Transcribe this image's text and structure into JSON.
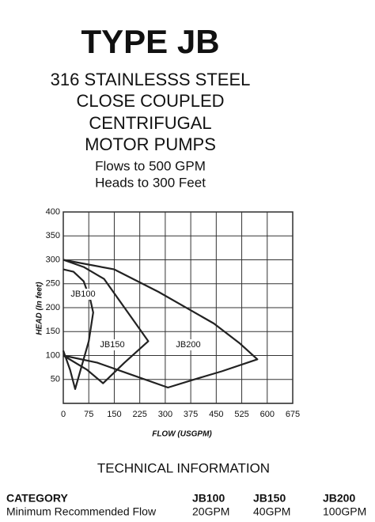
{
  "header": {
    "title": "TYPE JB",
    "lines": [
      "316 STAINLESSS STEEL",
      "CLOSE COUPLED",
      "CENTRIFUGAL",
      "MOTOR PUMPS"
    ],
    "sublines": [
      "Flows to 500 GPM",
      "Heads to 300 Feet"
    ]
  },
  "chart_data": {
    "type": "line",
    "x_label": "FLOW (USGPM)",
    "y_label": "HEAD (In feet)",
    "xlim": [
      0,
      675
    ],
    "ylim": [
      0,
      400
    ],
    "xticks": [
      0,
      75,
      150,
      225,
      300,
      375,
      450,
      525,
      600,
      675
    ],
    "yticks": [
      50,
      100,
      150,
      200,
      250,
      300,
      350,
      400
    ],
    "grid": true,
    "series": [
      {
        "name": "JB100",
        "color": "#222222",
        "x": [
          0,
          30,
          60,
          80,
          88,
          75,
          55,
          35,
          20,
          0
        ],
        "values": [
          280,
          275,
          255,
          215,
          190,
          130,
          80,
          30,
          70,
          110
        ]
      },
      {
        "name": "JB150",
        "color": "#222222",
        "x": [
          0,
          60,
          120,
          175,
          210,
          250,
          180,
          117,
          70,
          0
        ],
        "values": [
          300,
          285,
          260,
          205,
          170,
          130,
          85,
          42,
          70,
          100
        ]
      },
      {
        "name": "JB200",
        "color": "#222222",
        "x": [
          0,
          150,
          280,
          443,
          520,
          571,
          466,
          385,
          308,
          200,
          100,
          0
        ],
        "values": [
          300,
          280,
          233,
          167,
          125,
          92,
          67,
          50,
          33,
          60,
          85,
          100
        ]
      }
    ]
  },
  "technical": {
    "title": "TECHNICAL INFORMATION",
    "table": {
      "header": [
        "CATEGORY",
        "JB100",
        "JB150",
        "JB200"
      ],
      "rows": [
        [
          "Minimum Recommended Flow",
          "20GPM",
          "40GPM",
          "100GPM"
        ]
      ]
    }
  }
}
